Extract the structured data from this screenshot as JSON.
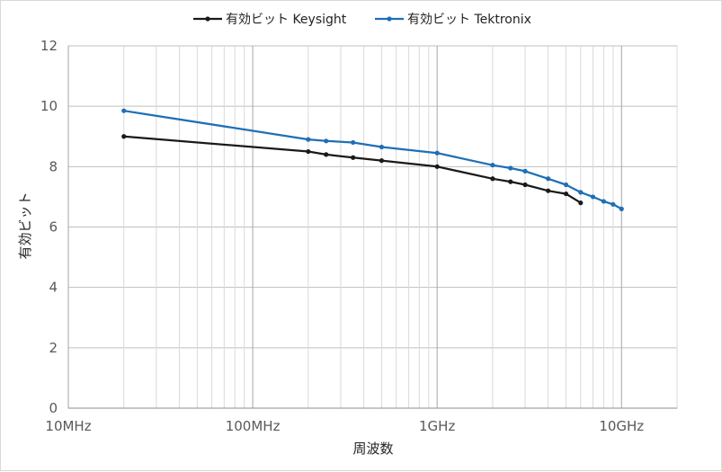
{
  "chart_data": {
    "type": "line",
    "xscale": "log",
    "xlim_hz": [
      10000000,
      20000000000
    ],
    "ylim": [
      0,
      12
    ],
    "y_ticks": [
      0,
      2,
      4,
      6,
      8,
      10,
      12
    ],
    "x_tick_values_hz": [
      10000000,
      100000000,
      1000000000,
      10000000000
    ],
    "x_tick_labels": [
      "10MHz",
      "100MHz",
      "1GHz",
      "10GHz"
    ],
    "xlabel": "周波数",
    "ylabel": "有効ビット",
    "grid": true,
    "legend_position": "top",
    "series": [
      {
        "name": "有効ビット Keysight",
        "color": "#1a1a1a",
        "x": [
          20000000,
          200000000,
          250000000,
          350000000,
          500000000,
          1000000000,
          2000000000,
          2500000000,
          3000000000,
          4000000000,
          5000000000,
          6000000000
        ],
        "y": [
          9.0,
          8.5,
          8.4,
          8.3,
          8.2,
          8.0,
          7.6,
          7.5,
          7.4,
          7.2,
          7.1,
          6.8
        ]
      },
      {
        "name": "有効ビット Tektronix",
        "color": "#1f6fb5",
        "x": [
          20000000,
          200000000,
          250000000,
          350000000,
          500000000,
          1000000000,
          2000000000,
          2500000000,
          3000000000,
          4000000000,
          5000000000,
          6000000000,
          7000000000,
          8000000000,
          9000000000,
          10000000000
        ],
        "y": [
          9.85,
          8.9,
          8.85,
          8.8,
          8.65,
          8.45,
          8.05,
          7.95,
          7.85,
          7.6,
          7.4,
          7.15,
          7.0,
          6.85,
          6.75,
          6.6
        ]
      }
    ]
  }
}
